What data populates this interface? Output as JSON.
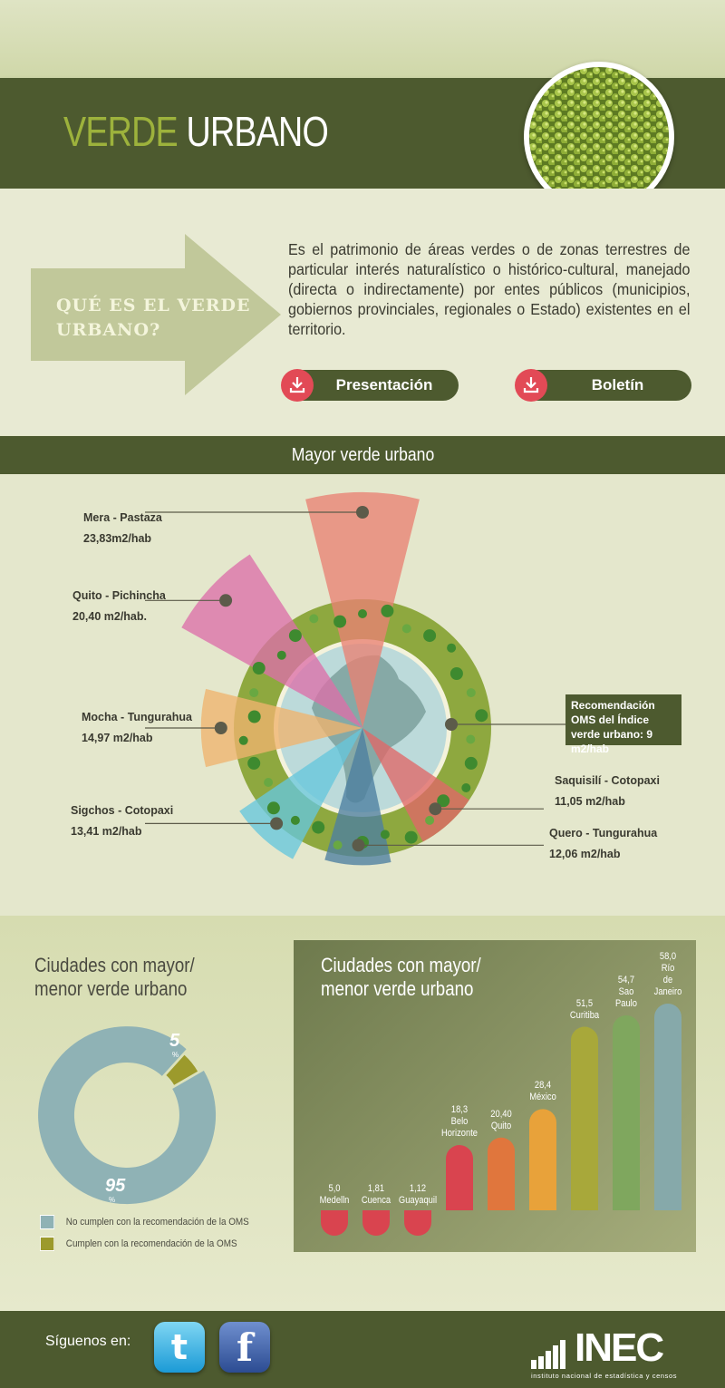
{
  "header": {
    "title_part1": "VERDE",
    "title_part2": "URBANO"
  },
  "intro": {
    "question": "QUÉ ES EL VERDE URBANO?",
    "definition": "Es el patrimonio de áreas verdes o de zonas terrestres de particular interés naturalístico o histórico-cultural, manejado (directa o indirectamente) por entes públicos (municipios, gobiernos provinciales, regionales o Estado) existentes en el territorio.",
    "download_presentation": "Presentación",
    "download_boletin": "Boletín",
    "download_icon": "download-icon"
  },
  "section_bar": "Mayor verde urbano",
  "colors": {
    "dark_green": "#4d5a2f",
    "accent_green": "#9db23c",
    "red": "#e24a56"
  },
  "chart_data": [
    {
      "type": "radial-bar",
      "title": "Mayor verde urbano",
      "reference": {
        "label": "Recomendación OMS del Índice verde urbano:  9 m2/hab",
        "value": 9
      },
      "categories": [
        {
          "name": "Mera  - Pastaza",
          "value_label": "23,83m2/hab",
          "value": 23.83,
          "color": "#e98273"
        },
        {
          "name": "Quito - Pichincha",
          "value_label": "20,40 m2/hab.",
          "value": 20.4,
          "color": "#dc6fa9"
        },
        {
          "name": "Mocha - Tungurahua",
          "value_label": "14,97 m2/hab",
          "value": 14.97,
          "color": "#f0b46e"
        },
        {
          "name": "Sigchos  - Cotopaxi",
          "value_label": "13,41 m2/hab",
          "value": 13.41,
          "color": "#67c6dd"
        },
        {
          "name": "Quero  - Tungurahua",
          "value_label": "12,06 m2/hab",
          "value": 12.06,
          "color": "#4d7fa0"
        },
        {
          "name": "Saquisilí  - Cotopaxi",
          "value_label": "11,05 m2/hab",
          "value": 11.05,
          "color": "#e06868"
        }
      ]
    },
    {
      "type": "pie",
      "title": "Ciudades con mayor/ menor verde urbano",
      "slices": [
        {
          "label": "No cumplen con la recomendación de la OMS",
          "value": 95,
          "value_label": "95",
          "unit": "%",
          "color": "#8fb2b5"
        },
        {
          "label": "Cumplen con la recomendación de la OMS",
          "value": 5,
          "value_label": "5",
          "unit": "%",
          "color": "#9c9a2c"
        }
      ]
    },
    {
      "type": "bar",
      "title": "Ciudades con mayor/ menor verde urbano",
      "categories": [
        "Medelln",
        "Cuenca",
        "Guayaquil",
        "Belo Horizonte",
        "Quito",
        "México",
        "Curitiba",
        "Sao Paulo",
        "Río de Janeiro"
      ],
      "value_labels": [
        "5,0",
        "1,81",
        "1,12",
        "18,3",
        "20,40",
        "28,4",
        "51,5",
        "54,7",
        "58,0"
      ],
      "values": [
        5.0,
        1.81,
        1.12,
        18.3,
        20.4,
        28.4,
        51.5,
        54.7,
        58.0
      ],
      "colors": [
        "#d9444f",
        "#d9444f",
        "#d9444f",
        "#d9444f",
        "#e0763d",
        "#e8a23a",
        "#a8a83a",
        "#7fa75e",
        "#86a9aa"
      ]
    }
  ],
  "footer": {
    "follow": "Síguenos en:",
    "social": [
      {
        "icon": "twitter-icon",
        "glyph": "t"
      },
      {
        "icon": "facebook-icon",
        "glyph": "f"
      }
    ],
    "logo": "INEC",
    "logo_sub": "instituto nacional de estadística y censos"
  }
}
